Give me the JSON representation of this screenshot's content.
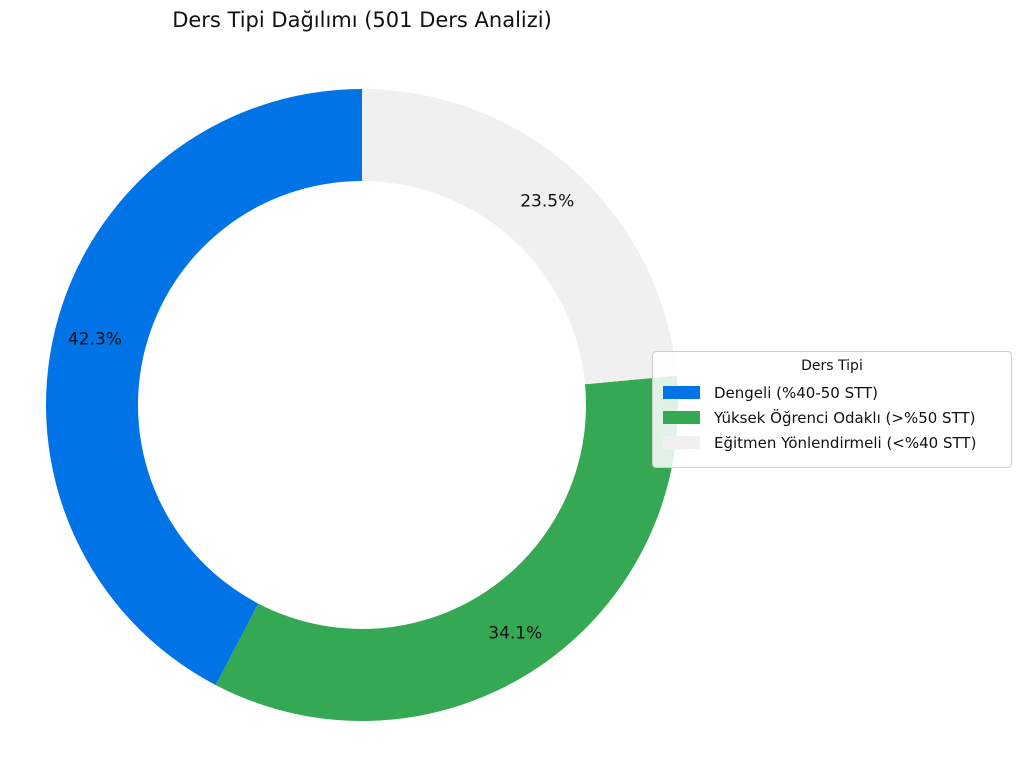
{
  "chart_data": {
    "type": "pie",
    "title": "Ders Tipi Dağılımı (501 Ders Analizi)",
    "slices": [
      {
        "label": "Dengeli (%40-50 STT)",
        "value": 42.3,
        "pct_label": "42.3%",
        "color": "#0073e6"
      },
      {
        "label": "Yüksek Öğrenci Odaklı (>%50 STT)",
        "value": 34.1,
        "pct_label": "34.1%",
        "color": "#34a853"
      },
      {
        "label": "Eğitmen Yönlendirmeli (<%40 STT)",
        "value": 23.5,
        "pct_label": "23.5%",
        "color": "#f0f0f0"
      }
    ],
    "legend": {
      "title": "Ders Tipi",
      "placement": "right"
    },
    "donut": true,
    "start_angle": "top",
    "direction": "counterclockwise"
  }
}
